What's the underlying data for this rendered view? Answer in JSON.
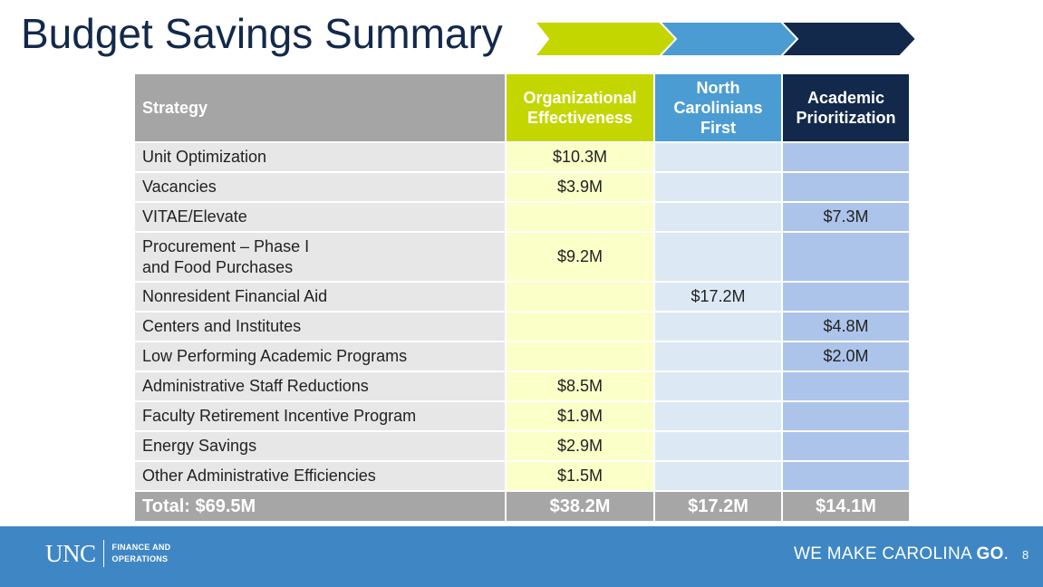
{
  "slide": {
    "title": "Budget Savings Summary",
    "page_number": "8"
  },
  "chevrons": {
    "colors": [
      "#c4d600",
      "#4b9cd3",
      "#13294b"
    ]
  },
  "table": {
    "headers": {
      "strategy": "Strategy",
      "organizational_effectiveness": "Organizational Effectiveness",
      "north_carolinians_first": "North Carolinians First",
      "academic_prioritization": "Academic Prioritization"
    },
    "rows": [
      {
        "strategy": "Unit Optimization",
        "oe": "$10.3M",
        "ncf": "",
        "ap": ""
      },
      {
        "strategy": "Vacancies",
        "oe": "$3.9M",
        "ncf": "",
        "ap": ""
      },
      {
        "strategy": "VITAE/Elevate",
        "oe": "",
        "ncf": "",
        "ap": "$7.3M"
      },
      {
        "strategy_line1": "Procurement – Phase I",
        "strategy_line2": "and Food Purchases",
        "oe": "$9.2M",
        "ncf": "",
        "ap": ""
      },
      {
        "strategy": "Nonresident Financial Aid",
        "oe": "",
        "ncf": "$17.2M",
        "ap": ""
      },
      {
        "strategy": "Centers and Institutes",
        "oe": "",
        "ncf": "",
        "ap": "$4.8M"
      },
      {
        "strategy": "Low Performing Academic Programs",
        "oe": "",
        "ncf": "",
        "ap": "$2.0M"
      },
      {
        "strategy": "Administrative Staff Reductions",
        "oe": "$8.5M",
        "ncf": "",
        "ap": ""
      },
      {
        "strategy": "Faculty Retirement Incentive Program",
        "oe": "$1.9M",
        "ncf": "",
        "ap": ""
      },
      {
        "strategy": "Energy Savings",
        "oe": "$2.9M",
        "ncf": "",
        "ap": ""
      },
      {
        "strategy": "Other Administrative Efficiencies",
        "oe": "$1.5M",
        "ncf": "",
        "ap": ""
      }
    ],
    "totals": {
      "label": "Total: $69.5M",
      "oe": "$38.2M",
      "ncf": "$17.2M",
      "ap": "$14.1M"
    }
  },
  "footer": {
    "logo_text": "UNC",
    "logo_sub_line1": "FINANCE AND",
    "logo_sub_line2": "OPERATIONS",
    "tagline_prefix": "WE MAKE CAROLINA ",
    "tagline_bold": "GO",
    "tagline_suffix": "."
  }
}
